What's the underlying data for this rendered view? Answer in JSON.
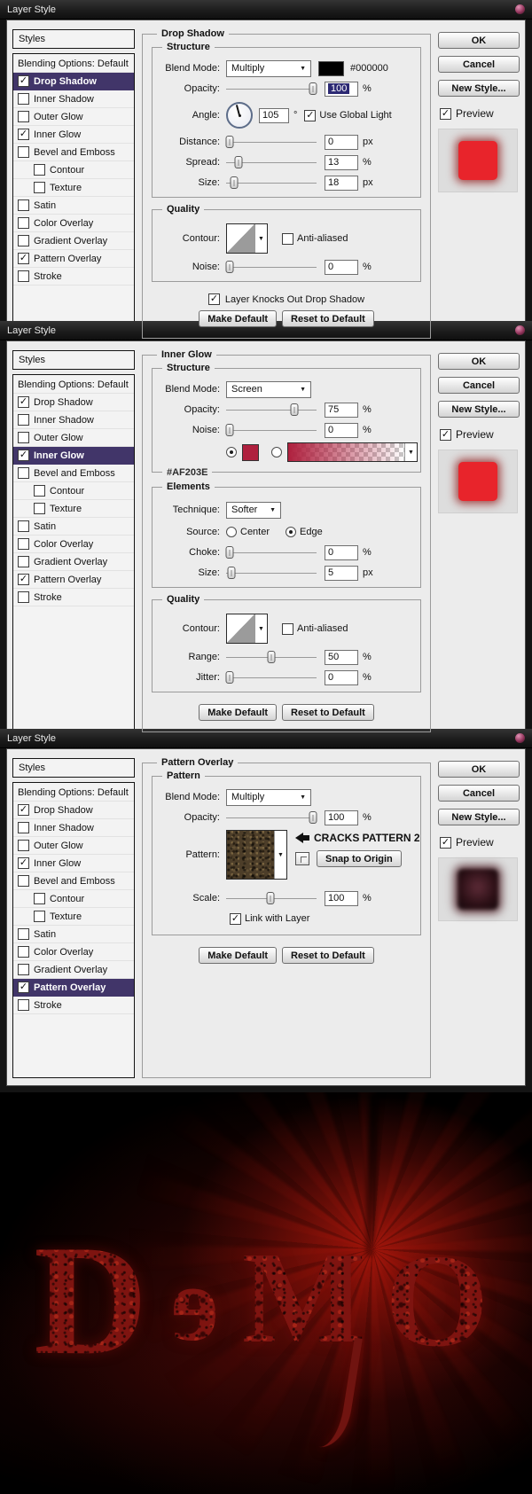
{
  "window_title": "Layer Style",
  "icons": {
    "check": "✓",
    "dropdown_arrow": "▼",
    "picker_arrow": "▼",
    "titlebar_orb": "red-orb"
  },
  "colors": {
    "accent_purple": "#413569",
    "preview_red": "#E8242B",
    "inner_glow_color": "#AF203E",
    "shadow_color": "#000000"
  },
  "shared_buttons": {
    "ok": "OK",
    "cancel": "Cancel",
    "new_style": "New Style...",
    "preview": "Preview",
    "make_default": "Make Default",
    "reset_default": "Reset to Default"
  },
  "dialogs": [
    {
      "panel_title": "Drop Shadow",
      "sidebar": {
        "header": "Styles",
        "items": [
          {
            "label": "Blending Options: Default",
            "checkbox": false
          },
          {
            "label": "Drop Shadow",
            "checkbox": true,
            "checked": true,
            "selected": true
          },
          {
            "label": "Inner Shadow",
            "checkbox": true,
            "checked": false
          },
          {
            "label": "Outer Glow",
            "checkbox": true,
            "checked": false
          },
          {
            "label": "Inner Glow",
            "checkbox": true,
            "checked": true
          },
          {
            "label": "Bevel and Emboss",
            "checkbox": true,
            "checked": false
          },
          {
            "label": "Contour",
            "checkbox": true,
            "checked": false,
            "indent": true
          },
          {
            "label": "Texture",
            "checkbox": true,
            "checked": false,
            "indent": true
          },
          {
            "label": "Satin",
            "checkbox": true,
            "checked": false
          },
          {
            "label": "Color Overlay",
            "checkbox": true,
            "checked": false
          },
          {
            "label": "Gradient Overlay",
            "checkbox": true,
            "checked": false
          },
          {
            "label": "Pattern Overlay",
            "checkbox": true,
            "checked": true
          },
          {
            "label": "Stroke",
            "checkbox": true,
            "checked": false
          }
        ]
      },
      "structure": {
        "title": "Structure",
        "blend_mode_label": "Blend Mode:",
        "blend_mode_value": "Multiply",
        "swatch_hex": "#000000",
        "opacity_label": "Opacity:",
        "opacity_value": "100",
        "opacity_unit": "%",
        "angle_label": "Angle:",
        "angle_value": "105",
        "angle_unit": "°",
        "global_light_label": "Use Global Light",
        "distance_label": "Distance:",
        "distance_value": "0",
        "distance_unit": "px",
        "spread_label": "Spread:",
        "spread_value": "13",
        "spread_unit": "%",
        "size_label": "Size:",
        "size_value": "18",
        "size_unit": "px"
      },
      "quality": {
        "title": "Quality",
        "contour_label": "Contour:",
        "anti_aliased_label": "Anti-aliased",
        "noise_label": "Noise:",
        "noise_value": "0",
        "noise_unit": "%"
      },
      "knockout_label": "Layer Knocks Out Drop Shadow"
    },
    {
      "panel_title": "Inner Glow",
      "sidebar": {
        "header": "Styles",
        "items": [
          {
            "label": "Blending Options: Default",
            "checkbox": false
          },
          {
            "label": "Drop Shadow",
            "checkbox": true,
            "checked": true
          },
          {
            "label": "Inner Shadow",
            "checkbox": true,
            "checked": false
          },
          {
            "label": "Outer Glow",
            "checkbox": true,
            "checked": false
          },
          {
            "label": "Inner Glow",
            "checkbox": true,
            "checked": true,
            "selected": true
          },
          {
            "label": "Bevel and Emboss",
            "checkbox": true,
            "checked": false
          },
          {
            "label": "Contour",
            "checkbox": true,
            "checked": false,
            "indent": true
          },
          {
            "label": "Texture",
            "checkbox": true,
            "checked": false,
            "indent": true
          },
          {
            "label": "Satin",
            "checkbox": true,
            "checked": false
          },
          {
            "label": "Color Overlay",
            "checkbox": true,
            "checked": false
          },
          {
            "label": "Gradient Overlay",
            "checkbox": true,
            "checked": false
          },
          {
            "label": "Pattern Overlay",
            "checkbox": true,
            "checked": true
          },
          {
            "label": "Stroke",
            "checkbox": true,
            "checked": false
          }
        ]
      },
      "structure": {
        "title": "Structure",
        "blend_mode_label": "Blend Mode:",
        "blend_mode_value": "Screen",
        "opacity_label": "Opacity:",
        "opacity_value": "75",
        "opacity_unit": "%",
        "noise_label": "Noise:",
        "noise_value": "0",
        "noise_unit": "%",
        "color_hex": "#AF203E"
      },
      "elements": {
        "title": "Elements",
        "technique_label": "Technique:",
        "technique_value": "Softer",
        "source_label": "Source:",
        "source_center": "Center",
        "source_edge": "Edge",
        "choke_label": "Choke:",
        "choke_value": "0",
        "choke_unit": "%",
        "size_label": "Size:",
        "size_value": "5",
        "size_unit": "px"
      },
      "quality": {
        "title": "Quality",
        "contour_label": "Contour:",
        "anti_aliased_label": "Anti-aliased",
        "range_label": "Range:",
        "range_value": "50",
        "range_unit": "%",
        "jitter_label": "Jitter:",
        "jitter_value": "0",
        "jitter_unit": "%"
      }
    },
    {
      "panel_title": "Pattern Overlay",
      "sidebar": {
        "header": "Styles",
        "items": [
          {
            "label": "Blending Options: Default",
            "checkbox": false
          },
          {
            "label": "Drop Shadow",
            "checkbox": true,
            "checked": true
          },
          {
            "label": "Inner Shadow",
            "checkbox": true,
            "checked": false
          },
          {
            "label": "Outer Glow",
            "checkbox": true,
            "checked": false
          },
          {
            "label": "Inner Glow",
            "checkbox": true,
            "checked": true
          },
          {
            "label": "Bevel and Emboss",
            "checkbox": true,
            "checked": false
          },
          {
            "label": "Contour",
            "checkbox": true,
            "checked": false,
            "indent": true
          },
          {
            "label": "Texture",
            "checkbox": true,
            "checked": false,
            "indent": true
          },
          {
            "label": "Satin",
            "checkbox": true,
            "checked": false
          },
          {
            "label": "Color Overlay",
            "checkbox": true,
            "checked": false
          },
          {
            "label": "Gradient Overlay",
            "checkbox": true,
            "checked": false
          },
          {
            "label": "Pattern Overlay",
            "checkbox": true,
            "checked": true,
            "selected": true
          },
          {
            "label": "Stroke",
            "checkbox": true,
            "checked": false
          }
        ]
      },
      "pattern": {
        "title": "Pattern",
        "blend_mode_label": "Blend Mode:",
        "blend_mode_value": "Multiply",
        "opacity_label": "Opacity:",
        "opacity_value": "100",
        "opacity_unit": "%",
        "pattern_label": "Pattern:",
        "annotation": "CRACKS PATTERN 2",
        "snap_button": "Snap to Origin",
        "scale_label": "Scale:",
        "scale_value": "100",
        "scale_unit": "%",
        "link_label": "Link with Layer"
      }
    }
  ],
  "image": {
    "text": "DEMO",
    "letters": [
      "D",
      "e",
      "M",
      "O"
    ]
  }
}
